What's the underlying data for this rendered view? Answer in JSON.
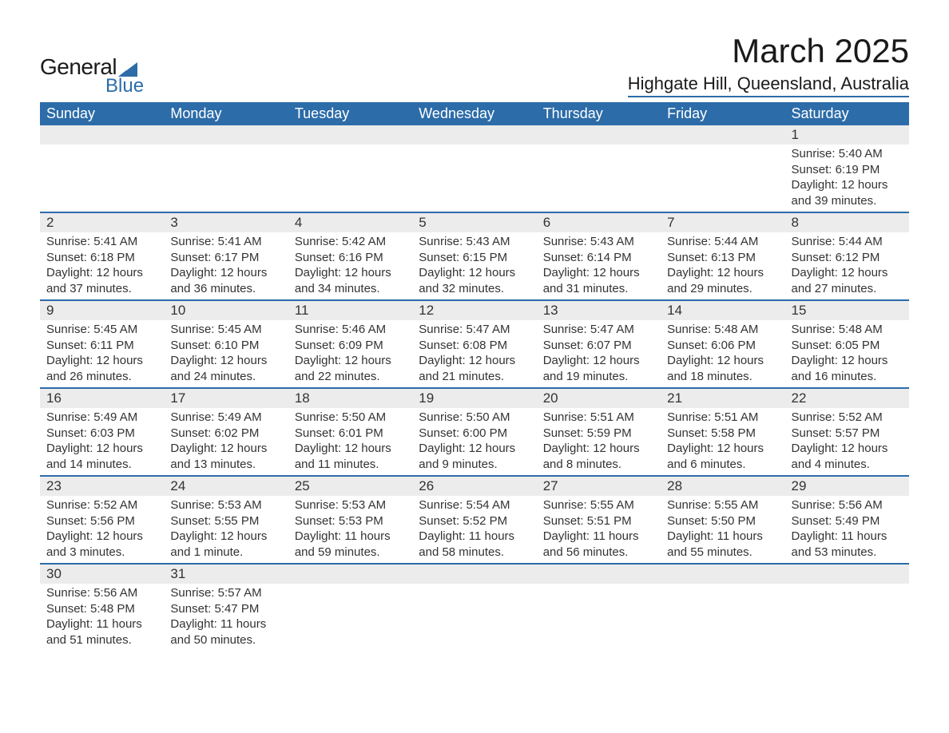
{
  "brand": {
    "top": "General",
    "bottom": "Blue",
    "tri_color": "#2c6ca8"
  },
  "title": "March 2025",
  "location": "Highgate Hill, Queensland, Australia",
  "colors": {
    "header_bg": "#2c6ca8",
    "header_fg": "#ffffff",
    "daynum_bg": "#ececec",
    "text": "#333333",
    "rule": "#2c6ca8",
    "page_bg": "#ffffff"
  },
  "typography": {
    "title_fontsize": 42,
    "location_fontsize": 22,
    "dayhead_fontsize": 18,
    "daynum_fontsize": 17,
    "detail_fontsize": 15
  },
  "calendar": {
    "day_headers": [
      "Sunday",
      "Monday",
      "Tuesday",
      "Wednesday",
      "Thursday",
      "Friday",
      "Saturday"
    ],
    "weeks": [
      [
        null,
        null,
        null,
        null,
        null,
        null,
        {
          "n": "1",
          "sr": "Sunrise: 5:40 AM",
          "ss": "Sunset: 6:19 PM",
          "dl1": "Daylight: 12 hours",
          "dl2": "and 39 minutes."
        }
      ],
      [
        {
          "n": "2",
          "sr": "Sunrise: 5:41 AM",
          "ss": "Sunset: 6:18 PM",
          "dl1": "Daylight: 12 hours",
          "dl2": "and 37 minutes."
        },
        {
          "n": "3",
          "sr": "Sunrise: 5:41 AM",
          "ss": "Sunset: 6:17 PM",
          "dl1": "Daylight: 12 hours",
          "dl2": "and 36 minutes."
        },
        {
          "n": "4",
          "sr": "Sunrise: 5:42 AM",
          "ss": "Sunset: 6:16 PM",
          "dl1": "Daylight: 12 hours",
          "dl2": "and 34 minutes."
        },
        {
          "n": "5",
          "sr": "Sunrise: 5:43 AM",
          "ss": "Sunset: 6:15 PM",
          "dl1": "Daylight: 12 hours",
          "dl2": "and 32 minutes."
        },
        {
          "n": "6",
          "sr": "Sunrise: 5:43 AM",
          "ss": "Sunset: 6:14 PM",
          "dl1": "Daylight: 12 hours",
          "dl2": "and 31 minutes."
        },
        {
          "n": "7",
          "sr": "Sunrise: 5:44 AM",
          "ss": "Sunset: 6:13 PM",
          "dl1": "Daylight: 12 hours",
          "dl2": "and 29 minutes."
        },
        {
          "n": "8",
          "sr": "Sunrise: 5:44 AM",
          "ss": "Sunset: 6:12 PM",
          "dl1": "Daylight: 12 hours",
          "dl2": "and 27 minutes."
        }
      ],
      [
        {
          "n": "9",
          "sr": "Sunrise: 5:45 AM",
          "ss": "Sunset: 6:11 PM",
          "dl1": "Daylight: 12 hours",
          "dl2": "and 26 minutes."
        },
        {
          "n": "10",
          "sr": "Sunrise: 5:45 AM",
          "ss": "Sunset: 6:10 PM",
          "dl1": "Daylight: 12 hours",
          "dl2": "and 24 minutes."
        },
        {
          "n": "11",
          "sr": "Sunrise: 5:46 AM",
          "ss": "Sunset: 6:09 PM",
          "dl1": "Daylight: 12 hours",
          "dl2": "and 22 minutes."
        },
        {
          "n": "12",
          "sr": "Sunrise: 5:47 AM",
          "ss": "Sunset: 6:08 PM",
          "dl1": "Daylight: 12 hours",
          "dl2": "and 21 minutes."
        },
        {
          "n": "13",
          "sr": "Sunrise: 5:47 AM",
          "ss": "Sunset: 6:07 PM",
          "dl1": "Daylight: 12 hours",
          "dl2": "and 19 minutes."
        },
        {
          "n": "14",
          "sr": "Sunrise: 5:48 AM",
          "ss": "Sunset: 6:06 PM",
          "dl1": "Daylight: 12 hours",
          "dl2": "and 18 minutes."
        },
        {
          "n": "15",
          "sr": "Sunrise: 5:48 AM",
          "ss": "Sunset: 6:05 PM",
          "dl1": "Daylight: 12 hours",
          "dl2": "and 16 minutes."
        }
      ],
      [
        {
          "n": "16",
          "sr": "Sunrise: 5:49 AM",
          "ss": "Sunset: 6:03 PM",
          "dl1": "Daylight: 12 hours",
          "dl2": "and 14 minutes."
        },
        {
          "n": "17",
          "sr": "Sunrise: 5:49 AM",
          "ss": "Sunset: 6:02 PM",
          "dl1": "Daylight: 12 hours",
          "dl2": "and 13 minutes."
        },
        {
          "n": "18",
          "sr": "Sunrise: 5:50 AM",
          "ss": "Sunset: 6:01 PM",
          "dl1": "Daylight: 12 hours",
          "dl2": "and 11 minutes."
        },
        {
          "n": "19",
          "sr": "Sunrise: 5:50 AM",
          "ss": "Sunset: 6:00 PM",
          "dl1": "Daylight: 12 hours",
          "dl2": "and 9 minutes."
        },
        {
          "n": "20",
          "sr": "Sunrise: 5:51 AM",
          "ss": "Sunset: 5:59 PM",
          "dl1": "Daylight: 12 hours",
          "dl2": "and 8 minutes."
        },
        {
          "n": "21",
          "sr": "Sunrise: 5:51 AM",
          "ss": "Sunset: 5:58 PM",
          "dl1": "Daylight: 12 hours",
          "dl2": "and 6 minutes."
        },
        {
          "n": "22",
          "sr": "Sunrise: 5:52 AM",
          "ss": "Sunset: 5:57 PM",
          "dl1": "Daylight: 12 hours",
          "dl2": "and 4 minutes."
        }
      ],
      [
        {
          "n": "23",
          "sr": "Sunrise: 5:52 AM",
          "ss": "Sunset: 5:56 PM",
          "dl1": "Daylight: 12 hours",
          "dl2": "and 3 minutes."
        },
        {
          "n": "24",
          "sr": "Sunrise: 5:53 AM",
          "ss": "Sunset: 5:55 PM",
          "dl1": "Daylight: 12 hours",
          "dl2": "and 1 minute."
        },
        {
          "n": "25",
          "sr": "Sunrise: 5:53 AM",
          "ss": "Sunset: 5:53 PM",
          "dl1": "Daylight: 11 hours",
          "dl2": "and 59 minutes."
        },
        {
          "n": "26",
          "sr": "Sunrise: 5:54 AM",
          "ss": "Sunset: 5:52 PM",
          "dl1": "Daylight: 11 hours",
          "dl2": "and 58 minutes."
        },
        {
          "n": "27",
          "sr": "Sunrise: 5:55 AM",
          "ss": "Sunset: 5:51 PM",
          "dl1": "Daylight: 11 hours",
          "dl2": "and 56 minutes."
        },
        {
          "n": "28",
          "sr": "Sunrise: 5:55 AM",
          "ss": "Sunset: 5:50 PM",
          "dl1": "Daylight: 11 hours",
          "dl2": "and 55 minutes."
        },
        {
          "n": "29",
          "sr": "Sunrise: 5:56 AM",
          "ss": "Sunset: 5:49 PM",
          "dl1": "Daylight: 11 hours",
          "dl2": "and 53 minutes."
        }
      ],
      [
        {
          "n": "30",
          "sr": "Sunrise: 5:56 AM",
          "ss": "Sunset: 5:48 PM",
          "dl1": "Daylight: 11 hours",
          "dl2": "and 51 minutes."
        },
        {
          "n": "31",
          "sr": "Sunrise: 5:57 AM",
          "ss": "Sunset: 5:47 PM",
          "dl1": "Daylight: 11 hours",
          "dl2": "and 50 minutes."
        },
        null,
        null,
        null,
        null,
        null
      ]
    ]
  }
}
